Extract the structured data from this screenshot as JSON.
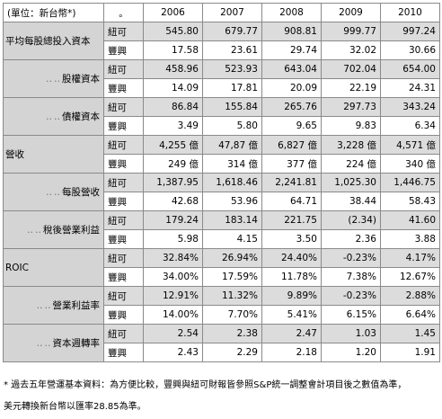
{
  "header": {
    "unit": "(單位：新台幣*)",
    "col_mark": "。",
    "years": [
      "2006",
      "2007",
      "2008",
      "2009",
      "2010"
    ]
  },
  "sections": [
    {
      "label": "平均每股總投入資本",
      "rows": [
        {
          "company": "紐可",
          "values": [
            "545.80",
            "679.77",
            "908.81",
            "999.77",
            "997.24"
          ]
        },
        {
          "company": "豐興",
          "values": [
            "17.58",
            "23.61",
            "29.74",
            "32.02",
            "30.66"
          ]
        }
      ]
    },
    {
      "label": "股權資本",
      "rows": [
        {
          "company": "紐可",
          "values": [
            "458.96",
            "523.93",
            "643.04",
            "702.04",
            "654.00"
          ]
        },
        {
          "company": "豐興",
          "values": [
            "14.09",
            "17.81",
            "20.09",
            "22.19",
            "24.31"
          ]
        }
      ]
    },
    {
      "label": "債權資本",
      "rows": [
        {
          "company": "紐可",
          "values": [
            "86.84",
            "155.84",
            "265.76",
            "297.73",
            "343.24"
          ]
        },
        {
          "company": "豐興",
          "values": [
            "3.49",
            "5.80",
            "9.65",
            "9.83",
            "6.34"
          ]
        }
      ]
    },
    {
      "label": "營收",
      "rows": [
        {
          "company": "紐可",
          "values": [
            "4,255 億",
            "47,87 億",
            "6,827 億",
            "3,228 億",
            "4,571 億"
          ]
        },
        {
          "company": "豐興",
          "values": [
            "249 億",
            "314 億",
            "377 億",
            "224 億",
            "340 億"
          ]
        }
      ]
    },
    {
      "label": "每股營收",
      "rows": [
        {
          "company": "紐可",
          "values": [
            "1,387.95",
            "1,618.46",
            "2,241.81",
            "1,025.30",
            "1,446.75"
          ]
        },
        {
          "company": "豐興",
          "values": [
            "42.68",
            "53.96",
            "64.71",
            "38.44",
            "58.43"
          ]
        }
      ]
    },
    {
      "label": "稅後營業利益",
      "rows": [
        {
          "company": "紐可",
          "values": [
            "179.24",
            "183.14",
            "221.75",
            "(2.34)",
            "41.60"
          ]
        },
        {
          "company": "豐興",
          "values": [
            "5.98",
            "4.15",
            "3.50",
            "2.36",
            "3.88"
          ]
        }
      ]
    },
    {
      "label": "ROIC",
      "rows": [
        {
          "company": "紐可",
          "values": [
            "32.84%",
            "26.94%",
            "24.40%",
            "-0.23%",
            "4.17%"
          ]
        },
        {
          "company": "豐興",
          "values": [
            "34.00%",
            "17.59%",
            "11.78%",
            "7.38%",
            "12.67%"
          ]
        }
      ]
    },
    {
      "label": "營業利益率",
      "rows": [
        {
          "company": "紐可",
          "values": [
            "12.91%",
            "11.32%",
            "9.89%",
            "-0.23%",
            "2.88%"
          ]
        },
        {
          "company": "豐興",
          "values": [
            "14.00%",
            "7.70%",
            "5.41%",
            "6.15%",
            "6.64%"
          ]
        }
      ]
    },
    {
      "label": "資本週轉率",
      "rows": [
        {
          "company": "紐可",
          "values": [
            "2.54",
            "2.38",
            "2.47",
            "1.03",
            "1.45"
          ]
        },
        {
          "company": "豐興",
          "values": [
            "2.43",
            "2.29",
            "2.18",
            "1.20",
            "1.91"
          ]
        }
      ]
    }
  ],
  "notes": {
    "note1": "* 過去五年營運基本資料：為方便比較，豐興與紐可財報皆參照S&P統一調整會計項目後之數值為準，",
    "note2": "美元轉換新台幣以匯率28.85為準。"
  }
}
